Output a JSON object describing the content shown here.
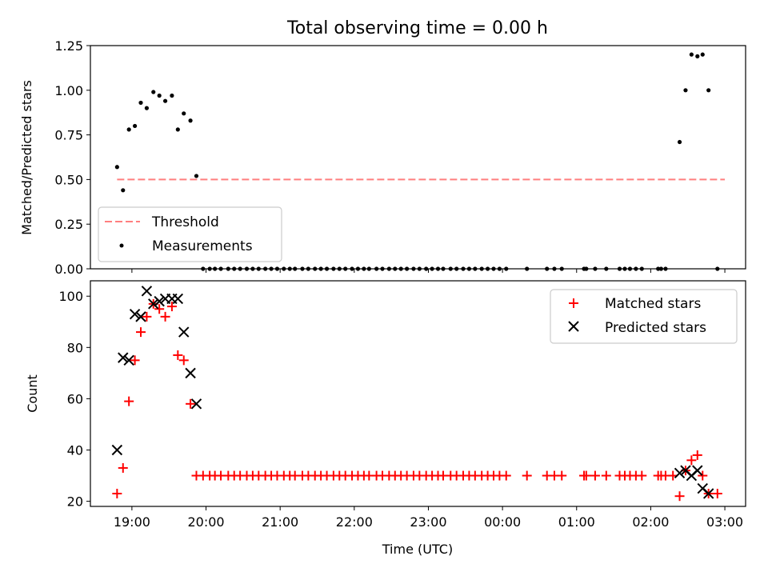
{
  "chart_data": [
    {
      "type": "scatter",
      "title": "Total observing time = 0.00 h",
      "xlabel": "",
      "ylabel": "Matched/Predicted stars",
      "ylim": [
        0,
        1.25
      ],
      "yticks": [
        0,
        0.25,
        0.5,
        0.75,
        1.0,
        1.25
      ],
      "ytick_labels": [
        "0.00",
        "0.25",
        "0.50",
        "0.75",
        "1.00",
        "1.25"
      ],
      "xlim_hours": [
        18.44,
        27.28
      ],
      "legend": {
        "placement": "lower-left",
        "entries": [
          "Threshold",
          "Measurements"
        ]
      },
      "series": [
        {
          "name": "Threshold",
          "kind": "dashed-line",
          "color": "#ff7f7f",
          "x": [
            18.8,
            27.0
          ],
          "y": [
            0.5,
            0.5
          ]
        },
        {
          "name": "Measurements",
          "kind": "dots",
          "color": "#000000",
          "x": [
            18.8,
            18.88,
            18.96,
            19.04,
            19.12,
            19.2,
            19.29,
            19.37,
            19.45,
            19.54,
            19.62,
            19.7,
            19.79,
            19.87,
            19.96,
            20.05,
            20.12,
            20.2,
            20.3,
            20.38,
            20.46,
            20.55,
            20.63,
            20.71,
            20.8,
            20.88,
            20.96,
            21.05,
            21.13,
            21.2,
            21.3,
            21.38,
            21.47,
            21.55,
            21.63,
            21.72,
            21.8,
            21.88,
            21.97,
            22.05,
            22.13,
            22.2,
            22.3,
            22.38,
            22.47,
            22.55,
            22.63,
            22.71,
            22.8,
            22.88,
            22.97,
            23.05,
            23.13,
            23.2,
            23.3,
            23.38,
            23.47,
            23.55,
            23.63,
            23.72,
            23.8,
            23.88,
            23.96,
            24.05,
            24.33,
            24.6,
            24.7,
            24.8,
            25.1,
            25.13,
            25.25,
            25.4,
            25.58,
            25.65,
            25.72,
            25.8,
            25.88,
            26.1,
            26.14,
            26.2,
            26.39,
            26.47,
            26.55,
            26.63,
            26.7,
            26.78,
            26.9
          ],
          "y": [
            0.57,
            0.44,
            0.78,
            0.8,
            0.93,
            0.9,
            0.99,
            0.97,
            0.94,
            0.97,
            0.78,
            0.87,
            0.83,
            0.52,
            0,
            0,
            0,
            0,
            0,
            0,
            0,
            0,
            0,
            0,
            0,
            0,
            0,
            0,
            0,
            0,
            0,
            0,
            0,
            0,
            0,
            0,
            0,
            0,
            0,
            0,
            0,
            0,
            0,
            0,
            0,
            0,
            0,
            0,
            0,
            0,
            0,
            0,
            0,
            0,
            0,
            0,
            0,
            0,
            0,
            0,
            0,
            0,
            0,
            0,
            0,
            0,
            0,
            0,
            0,
            0,
            0,
            0,
            0,
            0,
            0,
            0,
            0,
            0,
            0,
            0,
            0.71,
            1.0,
            1.2,
            1.19,
            1.2,
            1.0,
            0
          ]
        }
      ]
    },
    {
      "type": "scatter",
      "title": "",
      "xlabel": "Time (UTC)",
      "ylabel": "Count",
      "ylim": [
        18,
        106
      ],
      "yticks": [
        20,
        40,
        60,
        80,
        100
      ],
      "ytick_labels": [
        "20",
        "40",
        "60",
        "80",
        "100"
      ],
      "xlim_hours": [
        18.44,
        27.28
      ],
      "xticks_hours": [
        19,
        20,
        21,
        22,
        23,
        24,
        25,
        26,
        27
      ],
      "xtick_labels": [
        "19:00",
        "20:00",
        "21:00",
        "22:00",
        "23:00",
        "00:00",
        "01:00",
        "02:00",
        "03:00"
      ],
      "legend": {
        "placement": "top-right",
        "entries": [
          "Matched stars",
          "Predicted stars"
        ]
      },
      "series": [
        {
          "name": "Matched stars",
          "kind": "plus",
          "color": "#ff0000",
          "x": [
            18.8,
            18.88,
            18.96,
            19.04,
            19.12,
            19.2,
            19.29,
            19.37,
            19.45,
            19.54,
            19.62,
            19.7,
            19.79,
            19.87,
            19.96,
            20.05,
            20.12,
            20.2,
            20.3,
            20.38,
            20.46,
            20.55,
            20.63,
            20.71,
            20.8,
            20.88,
            20.96,
            21.05,
            21.13,
            21.2,
            21.3,
            21.38,
            21.47,
            21.55,
            21.63,
            21.72,
            21.8,
            21.88,
            21.97,
            22.05,
            22.13,
            22.2,
            22.3,
            22.38,
            22.47,
            22.55,
            22.63,
            22.71,
            22.8,
            22.88,
            22.97,
            23.05,
            23.13,
            23.2,
            23.3,
            23.38,
            23.47,
            23.55,
            23.63,
            23.72,
            23.8,
            23.88,
            23.96,
            24.05,
            24.33,
            24.6,
            24.7,
            24.8,
            25.1,
            25.13,
            25.25,
            25.4,
            25.58,
            25.65,
            25.72,
            25.8,
            25.88,
            26.1,
            26.14,
            26.2,
            26.3,
            26.39,
            26.47,
            26.55,
            26.63,
            26.7,
            26.78,
            26.9
          ],
          "y": [
            23,
            33,
            59,
            75,
            86,
            92,
            97,
            95,
            92,
            96,
            77,
            75,
            58,
            30,
            30,
            30,
            30,
            30,
            30,
            30,
            30,
            30,
            30,
            30,
            30,
            30,
            30,
            30,
            30,
            30,
            30,
            30,
            30,
            30,
            30,
            30,
            30,
            30,
            30,
            30,
            30,
            30,
            30,
            30,
            30,
            30,
            30,
            30,
            30,
            30,
            30,
            30,
            30,
            30,
            30,
            30,
            30,
            30,
            30,
            30,
            30,
            30,
            30,
            30,
            30,
            30,
            30,
            30,
            30,
            30,
            30,
            30,
            30,
            30,
            30,
            30,
            30,
            30,
            30,
            30,
            30,
            22,
            32,
            36,
            38,
            30,
            23,
            23
          ]
        },
        {
          "name": "Predicted stars",
          "kind": "cross",
          "color": "#000000",
          "x": [
            18.8,
            18.88,
            18.96,
            19.04,
            19.12,
            19.2,
            19.29,
            19.37,
            19.45,
            19.54,
            19.62,
            19.7,
            19.79,
            19.87,
            26.39,
            26.47,
            26.55,
            26.63,
            26.7,
            26.78
          ],
          "y": [
            40,
            76,
            75,
            93,
            92,
            102,
            97,
            98,
            99,
            99,
            99,
            86,
            70,
            58,
            31,
            32,
            30,
            32,
            25,
            23
          ]
        }
      ]
    }
  ]
}
